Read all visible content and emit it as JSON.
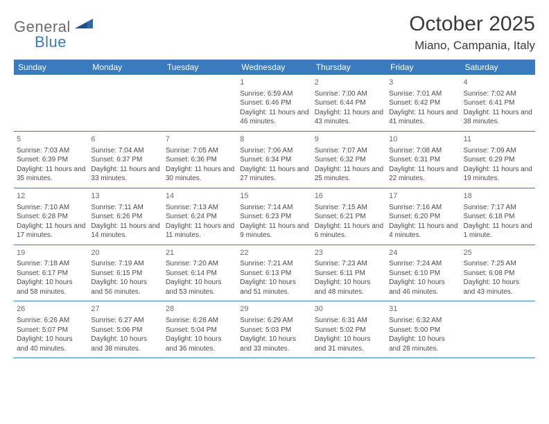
{
  "brand": {
    "general": "General",
    "blue": "Blue"
  },
  "title": "October 2025",
  "location": "Miano, Campania, Italy",
  "header_bg": "#3a7abf",
  "day_names": [
    "Sunday",
    "Monday",
    "Tuesday",
    "Wednesday",
    "Thursday",
    "Friday",
    "Saturday"
  ],
  "weeks": [
    [
      {
        "num": "",
        "lines": []
      },
      {
        "num": "",
        "lines": []
      },
      {
        "num": "",
        "lines": []
      },
      {
        "num": "1",
        "lines": [
          "Sunrise: 6:59 AM",
          "Sunset: 6:46 PM",
          "Daylight: 11 hours and 46 minutes."
        ]
      },
      {
        "num": "2",
        "lines": [
          "Sunrise: 7:00 AM",
          "Sunset: 6:44 PM",
          "Daylight: 11 hours and 43 minutes."
        ]
      },
      {
        "num": "3",
        "lines": [
          "Sunrise: 7:01 AM",
          "Sunset: 6:42 PM",
          "Daylight: 11 hours and 41 minutes."
        ]
      },
      {
        "num": "4",
        "lines": [
          "Sunrise: 7:02 AM",
          "Sunset: 6:41 PM",
          "Daylight: 11 hours and 38 minutes."
        ]
      }
    ],
    [
      {
        "num": "5",
        "lines": [
          "Sunrise: 7:03 AM",
          "Sunset: 6:39 PM",
          "Daylight: 11 hours and 35 minutes."
        ]
      },
      {
        "num": "6",
        "lines": [
          "Sunrise: 7:04 AM",
          "Sunset: 6:37 PM",
          "Daylight: 11 hours and 33 minutes."
        ]
      },
      {
        "num": "7",
        "lines": [
          "Sunrise: 7:05 AM",
          "Sunset: 6:36 PM",
          "Daylight: 11 hours and 30 minutes."
        ]
      },
      {
        "num": "8",
        "lines": [
          "Sunrise: 7:06 AM",
          "Sunset: 6:34 PM",
          "Daylight: 11 hours and 27 minutes."
        ]
      },
      {
        "num": "9",
        "lines": [
          "Sunrise: 7:07 AM",
          "Sunset: 6:32 PM",
          "Daylight: 11 hours and 25 minutes."
        ]
      },
      {
        "num": "10",
        "lines": [
          "Sunrise: 7:08 AM",
          "Sunset: 6:31 PM",
          "Daylight: 11 hours and 22 minutes."
        ]
      },
      {
        "num": "11",
        "lines": [
          "Sunrise: 7:09 AM",
          "Sunset: 6:29 PM",
          "Daylight: 11 hours and 19 minutes."
        ]
      }
    ],
    [
      {
        "num": "12",
        "lines": [
          "Sunrise: 7:10 AM",
          "Sunset: 6:28 PM",
          "Daylight: 11 hours and 17 minutes."
        ]
      },
      {
        "num": "13",
        "lines": [
          "Sunrise: 7:11 AM",
          "Sunset: 6:26 PM",
          "Daylight: 11 hours and 14 minutes."
        ]
      },
      {
        "num": "14",
        "lines": [
          "Sunrise: 7:13 AM",
          "Sunset: 6:24 PM",
          "Daylight: 11 hours and 11 minutes."
        ]
      },
      {
        "num": "15",
        "lines": [
          "Sunrise: 7:14 AM",
          "Sunset: 6:23 PM",
          "Daylight: 11 hours and 9 minutes."
        ]
      },
      {
        "num": "16",
        "lines": [
          "Sunrise: 7:15 AM",
          "Sunset: 6:21 PM",
          "Daylight: 11 hours and 6 minutes."
        ]
      },
      {
        "num": "17",
        "lines": [
          "Sunrise: 7:16 AM",
          "Sunset: 6:20 PM",
          "Daylight: 11 hours and 4 minutes."
        ]
      },
      {
        "num": "18",
        "lines": [
          "Sunrise: 7:17 AM",
          "Sunset: 6:18 PM",
          "Daylight: 11 hours and 1 minute."
        ]
      }
    ],
    [
      {
        "num": "19",
        "lines": [
          "Sunrise: 7:18 AM",
          "Sunset: 6:17 PM",
          "Daylight: 10 hours and 58 minutes."
        ]
      },
      {
        "num": "20",
        "lines": [
          "Sunrise: 7:19 AM",
          "Sunset: 6:15 PM",
          "Daylight: 10 hours and 56 minutes."
        ]
      },
      {
        "num": "21",
        "lines": [
          "Sunrise: 7:20 AM",
          "Sunset: 6:14 PM",
          "Daylight: 10 hours and 53 minutes."
        ]
      },
      {
        "num": "22",
        "lines": [
          "Sunrise: 7:21 AM",
          "Sunset: 6:13 PM",
          "Daylight: 10 hours and 51 minutes."
        ]
      },
      {
        "num": "23",
        "lines": [
          "Sunrise: 7:23 AM",
          "Sunset: 6:11 PM",
          "Daylight: 10 hours and 48 minutes."
        ]
      },
      {
        "num": "24",
        "lines": [
          "Sunrise: 7:24 AM",
          "Sunset: 6:10 PM",
          "Daylight: 10 hours and 46 minutes."
        ]
      },
      {
        "num": "25",
        "lines": [
          "Sunrise: 7:25 AM",
          "Sunset: 6:08 PM",
          "Daylight: 10 hours and 43 minutes."
        ]
      }
    ],
    [
      {
        "num": "26",
        "lines": [
          "Sunrise: 6:26 AM",
          "Sunset: 5:07 PM",
          "Daylight: 10 hours and 40 minutes."
        ]
      },
      {
        "num": "27",
        "lines": [
          "Sunrise: 6:27 AM",
          "Sunset: 5:06 PM",
          "Daylight: 10 hours and 38 minutes."
        ]
      },
      {
        "num": "28",
        "lines": [
          "Sunrise: 6:28 AM",
          "Sunset: 5:04 PM",
          "Daylight: 10 hours and 36 minutes."
        ]
      },
      {
        "num": "29",
        "lines": [
          "Sunrise: 6:29 AM",
          "Sunset: 5:03 PM",
          "Daylight: 10 hours and 33 minutes."
        ]
      },
      {
        "num": "30",
        "lines": [
          "Sunrise: 6:31 AM",
          "Sunset: 5:02 PM",
          "Daylight: 10 hours and 31 minutes."
        ]
      },
      {
        "num": "31",
        "lines": [
          "Sunrise: 6:32 AM",
          "Sunset: 5:00 PM",
          "Daylight: 10 hours and 28 minutes."
        ]
      },
      {
        "num": "",
        "lines": []
      }
    ]
  ]
}
